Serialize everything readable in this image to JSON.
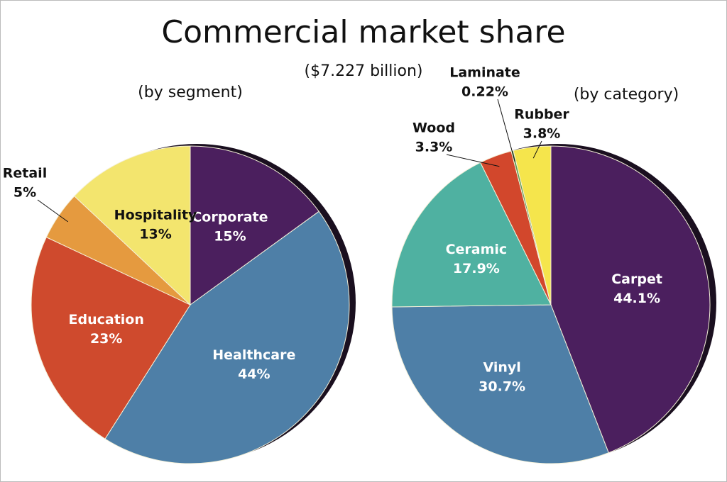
{
  "title": "Commercial market share",
  "subtitle": "($7.227 billion)",
  "chart_data": [
    {
      "type": "pie",
      "subtitle": "(by segment)",
      "categories": [
        "Corporate",
        "Healthcare",
        "Education",
        "Retail",
        "Hospitality"
      ],
      "values": [
        15,
        44,
        23,
        5,
        13
      ],
      "value_labels": [
        "15%",
        "44%",
        "23%",
        "5%",
        "13%"
      ],
      "colors": [
        "#4b1f5e",
        "#4e7fa7",
        "#cf4a2d",
        "#e59a3f",
        "#f3e56e"
      ]
    },
    {
      "type": "pie",
      "subtitle": "(by category)",
      "categories": [
        "Carpet",
        "Vinyl",
        "Ceramic",
        "Wood",
        "Laminate",
        "Rubber"
      ],
      "values": [
        44.1,
        30.7,
        17.9,
        3.3,
        0.22,
        3.8
      ],
      "value_labels": [
        "44.1%",
        "30.7%",
        "17.9%",
        "3.3%",
        "0.22%",
        "3.8%"
      ],
      "colors": [
        "#4b1f5e",
        "#4e7fa7",
        "#4fb1a1",
        "#d2472c",
        "#5f9a52",
        "#f5e54c"
      ]
    }
  ]
}
